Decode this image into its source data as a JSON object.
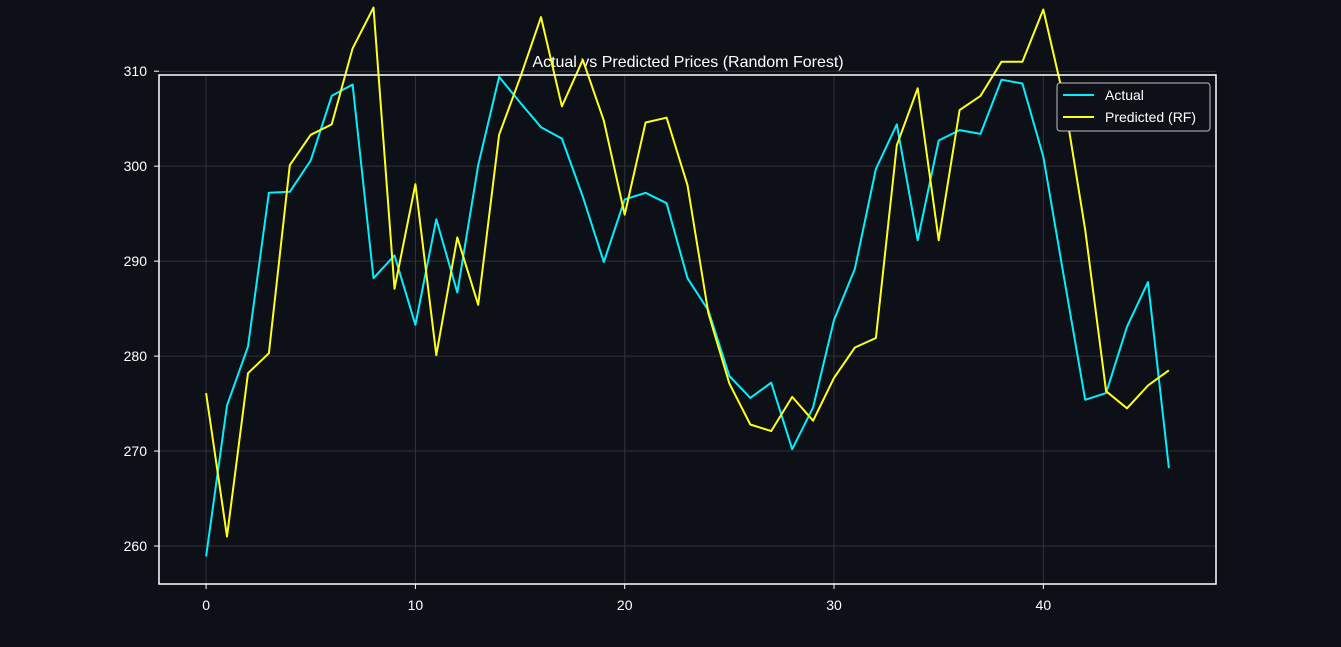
{
  "chart_data": {
    "type": "line",
    "title": "Actual vs Predicted Prices (Random Forest)",
    "xlabel": "",
    "ylabel": "",
    "xlim": [
      -2.25,
      48.25
    ],
    "ylim": [
      256,
      309.6
    ],
    "x_ticks": [
      0,
      10,
      20,
      30,
      40
    ],
    "y_ticks": [
      260,
      270,
      280,
      290,
      300,
      310
    ],
    "grid": true,
    "legend_position": "top-right",
    "background": "#0d1117",
    "grid_color": "#2f3338",
    "axes_color": "#ffffff",
    "x": [
      0,
      1,
      2,
      3,
      4,
      5,
      6,
      7,
      8,
      9,
      10,
      11,
      12,
      13,
      14,
      15,
      16,
      17,
      18,
      19,
      20,
      21,
      22,
      23,
      24,
      25,
      26,
      27,
      28,
      29,
      30,
      31,
      32,
      33,
      34,
      35,
      36,
      37,
      38,
      39,
      40,
      41,
      42,
      43,
      44,
      45,
      46
    ],
    "series": [
      {
        "name": "Actual",
        "color": "#00f0ff",
        "values": [
          258.9,
          274.8,
          281.0,
          297.2,
          297.3,
          300.6,
          307.4,
          308.6,
          288.2,
          290.6,
          283.3,
          294.4,
          286.7,
          300.1,
          309.4,
          306.7,
          304.1,
          302.9,
          296.8,
          289.9,
          296.5,
          297.2,
          296.1,
          288.2,
          284.8,
          277.9,
          275.6,
          277.2,
          270.2,
          274.6,
          283.8,
          289.2,
          299.7,
          304.4,
          292.2,
          302.7,
          303.8,
          303.4,
          309.1,
          308.7,
          301.0,
          288.1,
          275.4,
          276.1,
          283.1,
          287.8,
          268.2
        ]
      },
      {
        "name": "Predicted (RF)",
        "color": "#ffff1a",
        "values": [
          276.1,
          261.0,
          278.2,
          280.3,
          300.1,
          303.3,
          304.4,
          312.4,
          316.7,
          287.1,
          298.1,
          280.1,
          292.5,
          285.4,
          303.3,
          309.3,
          315.7,
          306.3,
          311.2,
          304.8,
          294.9,
          304.6,
          305.1,
          298.0,
          284.5,
          277.1,
          272.8,
          272.1,
          275.7,
          273.2,
          277.7,
          280.9,
          281.9,
          302.2,
          308.2,
          292.2,
          305.9,
          307.4,
          311.0,
          311.0,
          316.5,
          306.9,
          293.3,
          276.3,
          274.5,
          276.9,
          278.5
        ]
      }
    ]
  }
}
